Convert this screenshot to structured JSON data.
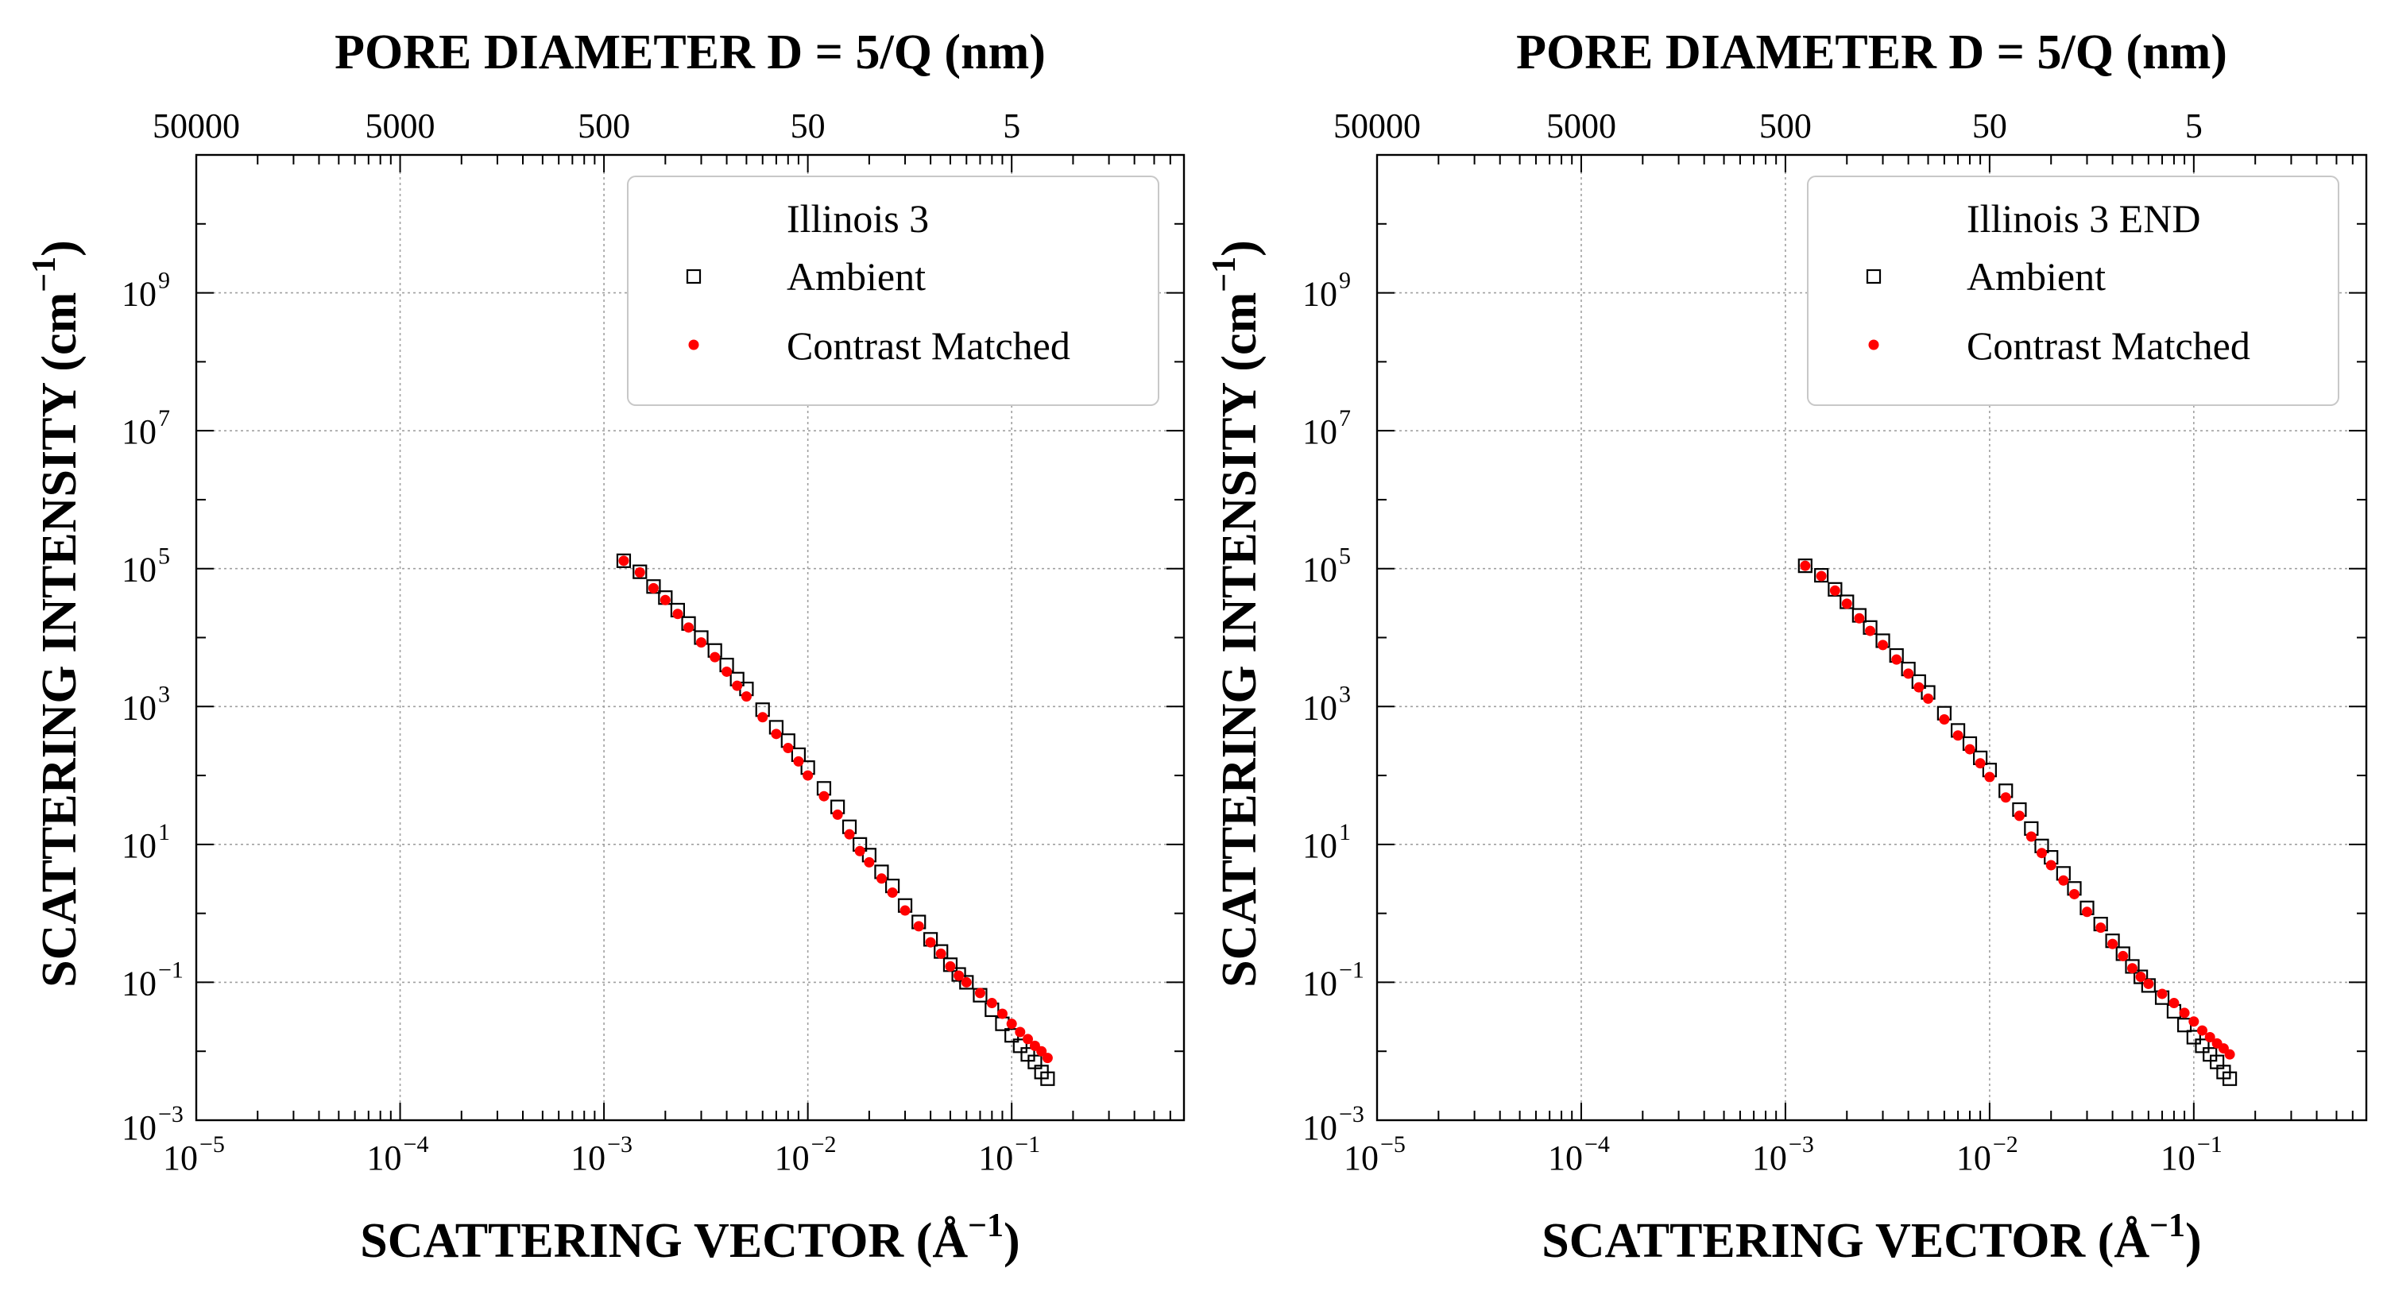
{
  "figure": {
    "top_axis_title": "PORE DIAMETER D = 5/Q (nm)",
    "x_axis_title_main": "SCATTERING VECTOR (Å",
    "x_axis_title_sup": "−1",
    "x_axis_title_end": ")",
    "y_axis_title_main": "SCATTERING INTENSITY (cm",
    "y_axis_title_sup": "−1",
    "y_axis_title_end": ")",
    "top_ticks": [
      "50000",
      "5000",
      "500",
      "50",
      "5"
    ],
    "x_tick_base": "10",
    "x_tick_exponents": [
      "−5",
      "−4",
      "−3",
      "−2",
      "−1"
    ],
    "y_tick_base": "10",
    "y_tick_exponents": [
      "−3",
      "−1",
      "1",
      "3",
      "5",
      "7",
      "9"
    ]
  },
  "colors": {
    "ambient_marker": "#000000",
    "contrast_marker": "#ff0000",
    "grid": "#a0a0a0"
  },
  "chart_data": [
    {
      "type": "scatter",
      "legend_title": "Illinois 3",
      "legend_position": "top-right",
      "xscale": "log",
      "yscale": "log",
      "xlim": [
        1e-05,
        0.7
      ],
      "ylim": [
        0.001,
        100000000000.0
      ],
      "grid": true,
      "xlabel": "SCATTERING VECTOR (Å−1)",
      "ylabel": "SCATTERING INTENSITY (cm−1)",
      "top_label": "PORE DIAMETER D = 5/Q (nm)",
      "series": [
        {
          "name": "Ambient",
          "marker": "open-square",
          "x": [
            0.00125,
            0.0015,
            0.00175,
            0.002,
            0.0023,
            0.0026,
            0.003,
            0.0035,
            0.004,
            0.0045,
            0.005,
            0.006,
            0.007,
            0.008,
            0.009,
            0.01,
            0.012,
            0.014,
            0.016,
            0.018,
            0.02,
            0.023,
            0.026,
            0.03,
            0.035,
            0.04,
            0.045,
            0.05,
            0.055,
            0.06,
            0.07,
            0.08,
            0.09,
            0.1,
            0.11,
            0.12,
            0.13,
            0.14,
            0.15
          ],
          "y": [
            130000,
            90000,
            55000,
            38000,
            25000,
            16000,
            10000,
            6500,
            4000,
            2500,
            1800,
            900,
            500,
            320,
            200,
            130,
            65,
            35,
            18,
            10,
            7,
            4,
            2.5,
            1.3,
            0.75,
            0.42,
            0.28,
            0.18,
            0.13,
            0.1,
            0.065,
            0.04,
            0.025,
            0.017,
            0.012,
            0.009,
            0.007,
            0.005,
            0.004
          ]
        },
        {
          "name": "Contrast Matched",
          "marker": "filled-dot",
          "x": [
            0.00125,
            0.0015,
            0.00175,
            0.002,
            0.0023,
            0.0026,
            0.003,
            0.0035,
            0.004,
            0.0045,
            0.005,
            0.006,
            0.007,
            0.008,
            0.009,
            0.01,
            0.012,
            0.014,
            0.016,
            0.018,
            0.02,
            0.023,
            0.026,
            0.03,
            0.035,
            0.04,
            0.045,
            0.05,
            0.055,
            0.06,
            0.07,
            0.08,
            0.09,
            0.1,
            0.11,
            0.12,
            0.13,
            0.14,
            0.15
          ],
          "y": [
            130000,
            88000,
            52000,
            35000,
            22000,
            14000,
            8500,
            5200,
            3200,
            2000,
            1400,
            700,
            400,
            250,
            160,
            100,
            50,
            27,
            14,
            8,
            5.5,
            3.2,
            2,
            1.1,
            0.65,
            0.38,
            0.26,
            0.17,
            0.125,
            0.1,
            0.07,
            0.05,
            0.035,
            0.025,
            0.019,
            0.015,
            0.012,
            0.01,
            0.008
          ]
        }
      ]
    },
    {
      "type": "scatter",
      "legend_title": "Illinois 3 END",
      "legend_position": "top-right",
      "xscale": "log",
      "yscale": "log",
      "xlim": [
        1e-05,
        0.7
      ],
      "ylim": [
        0.001,
        100000000000.0
      ],
      "grid": true,
      "xlabel": "SCATTERING VECTOR (Å−1)",
      "ylabel": "SCATTERING INTENSITY (cm−1)",
      "top_label": "PORE DIAMETER D = 5/Q (nm)",
      "series": [
        {
          "name": "Ambient",
          "marker": "open-square",
          "x": [
            0.00125,
            0.0015,
            0.00175,
            0.002,
            0.0023,
            0.0026,
            0.003,
            0.0035,
            0.004,
            0.0045,
            0.005,
            0.006,
            0.007,
            0.008,
            0.009,
            0.01,
            0.012,
            0.014,
            0.016,
            0.018,
            0.02,
            0.023,
            0.026,
            0.03,
            0.035,
            0.04,
            0.045,
            0.05,
            0.055,
            0.06,
            0.07,
            0.08,
            0.09,
            0.1,
            0.11,
            0.12,
            0.13,
            0.14,
            0.15
          ],
          "y": [
            110000,
            80000,
            50000,
            33000,
            21000,
            14000,
            9000,
            5500,
            3500,
            2300,
            1600,
            800,
            450,
            290,
            180,
            120,
            60,
            32,
            17,
            9.5,
            6.5,
            3.8,
            2.3,
            1.2,
            0.7,
            0.4,
            0.26,
            0.17,
            0.12,
            0.09,
            0.06,
            0.038,
            0.024,
            0.016,
            0.012,
            0.009,
            0.007,
            0.005,
            0.004
          ]
        },
        {
          "name": "Contrast Matched",
          "marker": "filled-dot",
          "x": [
            0.00125,
            0.0015,
            0.00175,
            0.002,
            0.0023,
            0.0026,
            0.003,
            0.0035,
            0.004,
            0.0045,
            0.005,
            0.006,
            0.007,
            0.008,
            0.009,
            0.01,
            0.012,
            0.014,
            0.016,
            0.018,
            0.02,
            0.023,
            0.026,
            0.03,
            0.035,
            0.04,
            0.045,
            0.05,
            0.055,
            0.06,
            0.07,
            0.08,
            0.09,
            0.1,
            0.11,
            0.12,
            0.13,
            0.14,
            0.15
          ],
          "y": [
            110000,
            78000,
            48000,
            31000,
            19000,
            12500,
            7800,
            4800,
            3000,
            1900,
            1300,
            650,
            380,
            240,
            150,
            95,
            48,
            26,
            13,
            7.5,
            5,
            3,
            1.9,
            1.05,
            0.62,
            0.36,
            0.24,
            0.16,
            0.12,
            0.095,
            0.068,
            0.05,
            0.036,
            0.027,
            0.02,
            0.016,
            0.013,
            0.011,
            0.009
          ]
        }
      ]
    }
  ]
}
